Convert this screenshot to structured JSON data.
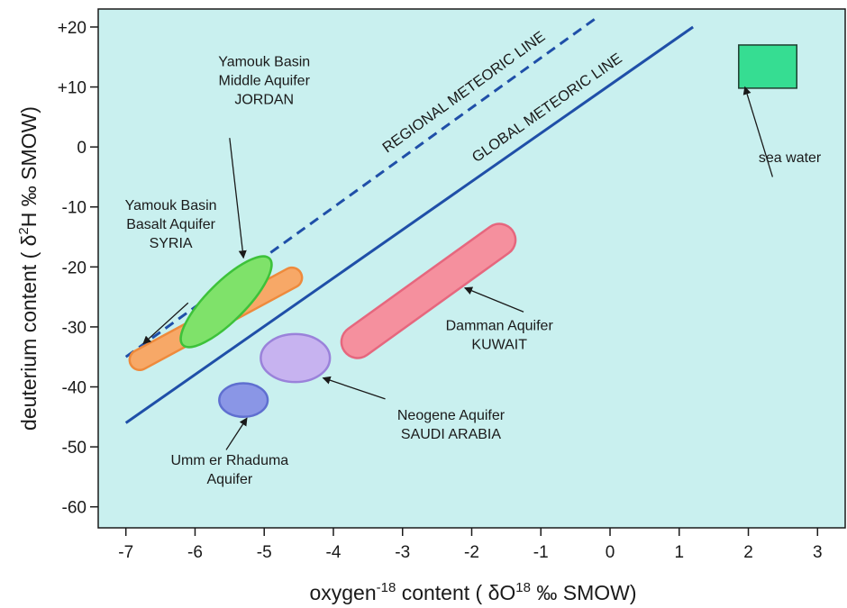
{
  "chart_data": {
    "type": "scatter",
    "xlabel": {
      "pre": "oxygen",
      "sup1": "-18",
      "mid": " content ( ",
      "delta": "δ",
      "o": "O",
      "sup2": "18",
      "post": " ‰ SMOW)"
    },
    "ylabel": {
      "pre": "deuterium content  ( ",
      "delta": "δ",
      "sup": "2",
      "post": "H ‰ SMOW)"
    },
    "xlim": [
      -7.4,
      3.4
    ],
    "ylim": [
      -63.5,
      23
    ],
    "xticks": [
      {
        "v": -7,
        "label": "-7"
      },
      {
        "v": -6,
        "label": "-6"
      },
      {
        "v": -5,
        "label": "-5"
      },
      {
        "v": -4,
        "label": "-4"
      },
      {
        "v": -3,
        "label": "-3"
      },
      {
        "v": -2,
        "label": "-2"
      },
      {
        "v": -1,
        "label": "-1"
      },
      {
        "v": 0,
        "label": "0"
      },
      {
        "v": 1,
        "label": "1"
      },
      {
        "v": 2,
        "label": "2"
      },
      {
        "v": 3,
        "label": "3"
      }
    ],
    "yticks": [
      {
        "v": 20,
        "label": "+20"
      },
      {
        "v": 10,
        "label": "+10"
      },
      {
        "v": 0,
        "label": "0"
      },
      {
        "v": -10,
        "label": "-10"
      },
      {
        "v": -20,
        "label": "-20"
      },
      {
        "v": -30,
        "label": "-30"
      },
      {
        "v": -40,
        "label": "-40"
      },
      {
        "v": -50,
        "label": "-50"
      },
      {
        "v": -60,
        "label": "-60"
      }
    ],
    "grid": false,
    "background_color": "#c9f0ef",
    "lines": [
      {
        "name": "REGIONAL METEORIC LINE",
        "from": [
          -7.0,
          -35
        ],
        "to": [
          -0.2,
          21.5
        ],
        "dashed": true,
        "color": "#1f4fa8"
      },
      {
        "name": "GLOBAL METEORIC LINE",
        "from": [
          -7.0,
          -46
        ],
        "to": [
          1.2,
          20
        ],
        "dashed": false,
        "color": "#1f4fa8"
      }
    ],
    "regions": [
      {
        "name": "Yamouk Basin Basalt Aquifer SYRIA",
        "shape": "band",
        "from": [
          -6.8,
          -35.5
        ],
        "to": [
          -4.6,
          -21.8
        ],
        "thickness": 3.0,
        "fill": "#f7a867",
        "stroke": "#ee8a3c"
      },
      {
        "name": "Yamouk Basin Middle Aquifer JORDAN",
        "shape": "ellipse",
        "center": [
          -5.55,
          -25.8
        ],
        "rx": 0.28,
        "ry": 10.2,
        "rotation": 45,
        "fill": "#7fe26a",
        "stroke": "#3dc23a"
      },
      {
        "name": "Damman Aquifer KUWAIT",
        "shape": "band",
        "from": [
          -3.65,
          -32.5
        ],
        "to": [
          -1.6,
          -15.5
        ],
        "thickness": 5.0,
        "fill": "#f5909e",
        "stroke": "#e6677e"
      },
      {
        "name": "Neogene Aquifer SAUDI ARABIA",
        "shape": "ellipse",
        "center": [
          -4.55,
          -35.2
        ],
        "rx": 0.5,
        "ry": 4.0,
        "rotation": 0,
        "fill": "#c7b3f0",
        "stroke": "#9a82da"
      },
      {
        "name": "Umm er Rhaduma Aquifer",
        "shape": "ellipse",
        "center": [
          -5.3,
          -42.2
        ],
        "rx": 0.35,
        "ry": 2.8,
        "rotation": 0,
        "fill": "#8a96e6",
        "stroke": "#5f6fd0"
      },
      {
        "name": "sea water",
        "shape": "rect",
        "x": [
          1.86,
          2.7
        ],
        "y": [
          9.8,
          17
        ],
        "fill": "#36dd92",
        "stroke": "#1f3d30"
      }
    ],
    "annotations": [
      {
        "id": "jordan",
        "lines": [
          "Yamouk Basin",
          "Middle Aquifer",
          "JORDAN"
        ],
        "at": [
          -5.0,
          13.5
        ],
        "arrow_from": [
          -5.5,
          1.5
        ],
        "arrow_to": [
          -5.3,
          -18.5
        ]
      },
      {
        "id": "syria",
        "lines": [
          "Yamouk Basin",
          "Basalt Aquifer",
          "SYRIA"
        ],
        "at": [
          -6.35,
          -10.5
        ],
        "arrow_from": [
          -6.1,
          -26
        ],
        "arrow_to": [
          -6.75,
          -32.8
        ]
      },
      {
        "id": "kuwait",
        "lines": [
          "Damman  Aquifer",
          "KUWAIT"
        ],
        "at": [
          -1.6,
          -30.5
        ],
        "arrow_from": [
          -1.25,
          -27.5
        ],
        "arrow_to": [
          -2.1,
          -23.5
        ]
      },
      {
        "id": "saudi",
        "lines": [
          "Neogene Aquifer",
          "SAUDI ARABIA"
        ],
        "at": [
          -2.3,
          -45.5
        ],
        "arrow_from": [
          -3.25,
          -42
        ],
        "arrow_to": [
          -4.15,
          -38.5
        ]
      },
      {
        "id": "umm",
        "lines": [
          "Umm er Rhaduma",
          "Aquifer"
        ],
        "at": [
          -5.5,
          -53
        ],
        "arrow_from": [
          -5.55,
          -50.5
        ],
        "arrow_to": [
          -5.25,
          -45.2
        ]
      },
      {
        "id": "sea",
        "lines": [
          "sea water"
        ],
        "at": [
          2.6,
          -2.5
        ],
        "arrow_from": [
          2.35,
          -5
        ],
        "arrow_to": [
          1.95,
          10
        ]
      }
    ]
  }
}
